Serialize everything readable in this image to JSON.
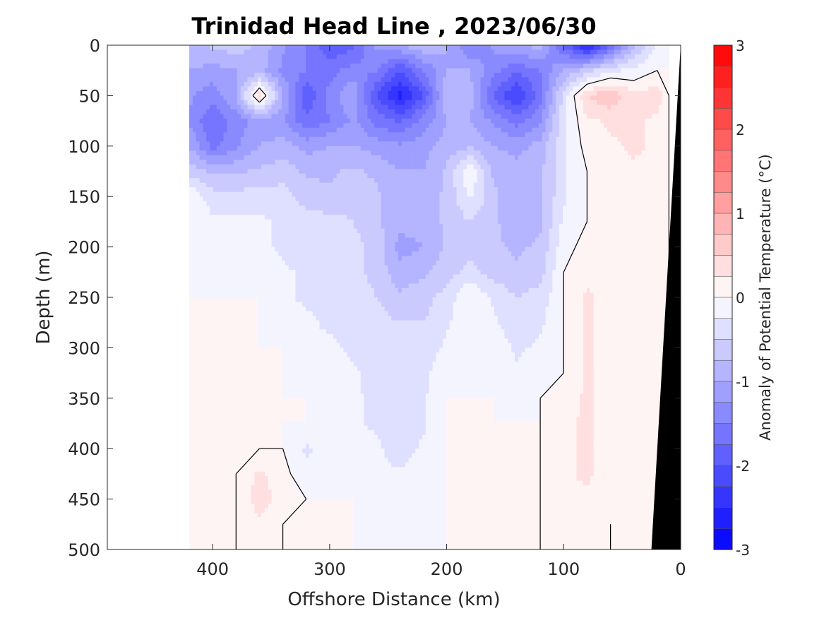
{
  "chart_data": {
    "type": "heatmap",
    "title": "Trinidad Head Line , 2023/06/30",
    "xlabel": "Offshore Distance (km)",
    "ylabel": "Depth (m)",
    "xlim": [
      490,
      0
    ],
    "ylim": [
      500,
      0
    ],
    "x_ticks": [
      400,
      300,
      200,
      100,
      0
    ],
    "y_ticks": [
      0,
      50,
      100,
      150,
      200,
      250,
      300,
      350,
      400,
      450,
      500
    ],
    "colorbar": {
      "label": "Anomaly of Potential Temperature (°C)",
      "range": [
        -3,
        3
      ],
      "step": 0.25,
      "ticks": [
        3,
        2,
        1,
        0,
        -1,
        -2,
        -3
      ],
      "low_color": "#0000ff",
      "mid_color": "#ffffff",
      "high_color": "#ff0000"
    },
    "x_km": [
      420,
      400,
      380,
      360,
      340,
      320,
      300,
      280,
      260,
      240,
      220,
      200,
      180,
      160,
      140,
      120,
      100,
      80,
      60,
      40,
      20,
      10
    ],
    "depth_m": [
      0,
      25,
      50,
      75,
      100,
      125,
      150,
      175,
      200,
      225,
      250,
      275,
      300,
      325,
      350,
      375,
      400,
      425,
      450,
      475,
      500
    ],
    "anomaly_c": [
      [
        -0.8,
        -0.7,
        -0.6,
        -0.8,
        -1.2,
        -1.5,
        -2.0,
        -1.8,
        -1.2,
        -1.0,
        -0.8,
        -1.0,
        -1.5,
        -1.2,
        -1.0,
        -0.9,
        -1.8,
        -2.6,
        -1.8,
        -0.8,
        -0.2,
        0.0
      ],
      [
        -1.0,
        -1.1,
        -1.0,
        -0.9,
        -1.3,
        -1.5,
        -1.6,
        -1.4,
        -1.5,
        -2.0,
        -1.5,
        -1.0,
        -1.0,
        -1.4,
        -1.7,
        -1.5,
        -1.0,
        -0.6,
        -0.3,
        -0.2,
        0.0,
        0.0
      ],
      [
        -1.2,
        -1.4,
        -1.0,
        0.4,
        -1.0,
        -2.0,
        -1.4,
        -1.0,
        -2.0,
        -2.6,
        -2.0,
        -0.8,
        -0.9,
        -1.8,
        -2.3,
        -1.6,
        -0.4,
        0.5,
        0.7,
        0.3,
        0.4,
        0.0
      ],
      [
        -1.3,
        -1.7,
        -1.4,
        -1.1,
        -1.2,
        -1.7,
        -1.5,
        -1.2,
        -1.6,
        -1.8,
        -1.4,
        -1.0,
        -1.0,
        -1.3,
        -1.6,
        -1.3,
        -0.3,
        0.2,
        0.3,
        0.3,
        0.2,
        0.0
      ],
      [
        -1.0,
        -1.6,
        -1.3,
        -1.0,
        -0.9,
        -1.1,
        -1.0,
        -1.0,
        -1.1,
        -1.2,
        -1.1,
        -0.9,
        -0.8,
        -1.0,
        -1.1,
        -0.9,
        -0.3,
        0.1,
        0.2,
        0.3,
        0.2,
        0.0
      ],
      [
        -0.6,
        -0.8,
        -0.8,
        -0.7,
        -0.6,
        -0.8,
        -0.8,
        -0.7,
        -0.8,
        -1.0,
        -1.0,
        -0.7,
        0.0,
        -0.8,
        -0.9,
        -0.8,
        -0.3,
        0.0,
        0.1,
        0.2,
        0.2,
        0.0
      ],
      [
        0.0,
        -0.4,
        -0.4,
        -0.4,
        -0.4,
        -0.6,
        -0.7,
        -0.6,
        -0.7,
        -0.9,
        -0.9,
        -0.7,
        -0.2,
        -0.7,
        -0.9,
        -0.8,
        -0.3,
        0.0,
        0.1,
        0.2,
        0.2,
        0.0
      ],
      [
        0.0,
        -0.2,
        -0.2,
        -0.2,
        -0.3,
        -0.4,
        -0.4,
        -0.5,
        -0.7,
        -0.9,
        -0.9,
        -0.7,
        -0.5,
        -0.7,
        -0.9,
        -0.8,
        -0.2,
        0.0,
        0.1,
        0.2,
        0.2,
        0.0
      ],
      [
        0.0,
        -0.1,
        -0.1,
        -0.2,
        -0.3,
        -0.4,
        -0.4,
        -0.4,
        -0.6,
        -1.1,
        -1.0,
        -0.7,
        -0.6,
        -0.7,
        -0.8,
        -0.7,
        -0.1,
        0.1,
        0.1,
        0.2,
        0.2,
        0.0
      ],
      [
        0.0,
        -0.1,
        0.0,
        -0.1,
        -0.2,
        -0.3,
        -0.3,
        -0.4,
        -0.6,
        -0.9,
        -0.8,
        -0.6,
        -0.4,
        -0.6,
        -0.7,
        -0.6,
        0.0,
        0.2,
        0.1,
        0.2,
        0.2,
        0.0
      ],
      [
        0.0,
        0.0,
        0.0,
        0.0,
        -0.2,
        -0.3,
        -0.3,
        -0.3,
        -0.5,
        -0.7,
        -0.6,
        -0.4,
        0.0,
        -0.3,
        -0.5,
        -0.4,
        0.0,
        0.3,
        0.1,
        0.2,
        0.2,
        0.0
      ],
      [
        0.0,
        0.0,
        0.0,
        0.0,
        -0.1,
        -0.2,
        -0.3,
        -0.3,
        -0.4,
        -0.5,
        -0.5,
        -0.3,
        0.0,
        -0.2,
        -0.4,
        -0.3,
        0.0,
        0.3,
        0.1,
        0.1,
        0.2,
        0.0
      ],
      [
        0.0,
        0.0,
        0.0,
        0.0,
        0.0,
        -0.2,
        -0.2,
        -0.3,
        -0.4,
        -0.5,
        -0.4,
        -0.2,
        0.0,
        -0.1,
        -0.3,
        -0.2,
        0.0,
        0.3,
        0.1,
        0.1,
        0.2,
        0.0
      ],
      [
        0.0,
        0.0,
        0.0,
        0.0,
        0.0,
        -0.1,
        -0.2,
        -0.2,
        -0.4,
        -0.4,
        -0.3,
        -0.1,
        0.0,
        -0.1,
        -0.2,
        -0.1,
        0.0,
        0.3,
        0.1,
        0.1,
        0.2,
        0.0
      ],
      [
        0.0,
        0.0,
        0.0,
        0.0,
        0.0,
        0.0,
        -0.1,
        -0.2,
        -0.3,
        -0.4,
        -0.3,
        0.0,
        0.0,
        0.0,
        -0.1,
        0.0,
        0.1,
        0.3,
        0.1,
        0.1,
        0.2,
        0.0
      ],
      [
        0.0,
        0.0,
        0.0,
        0.0,
        0.0,
        0.0,
        -0.1,
        -0.2,
        -0.3,
        -0.4,
        -0.3,
        0.0,
        0.0,
        0.0,
        0.0,
        0.0,
        0.2,
        0.3,
        0.1,
        0.1,
        0.2,
        0.0
      ],
      [
        0.0,
        0.0,
        0.0,
        0.0,
        0.0,
        -0.3,
        -0.1,
        -0.1,
        -0.2,
        -0.4,
        -0.2,
        0.0,
        0.0,
        0.0,
        0.0,
        0.0,
        0.2,
        0.3,
        0.1,
        0.1,
        0.2,
        0.0
      ],
      [
        0.0,
        0.0,
        0.0,
        0.3,
        0.1,
        -0.2,
        0.0,
        -0.1,
        -0.2,
        -0.2,
        -0.1,
        0.0,
        0.0,
        0.0,
        0.0,
        0.0,
        0.2,
        0.3,
        0.1,
        0.1,
        0.2,
        0.0
      ],
      [
        0.0,
        0.0,
        0.0,
        0.4,
        0.1,
        0.0,
        0.0,
        0.0,
        -0.1,
        -0.2,
        -0.1,
        0.0,
        0.0,
        0.0,
        0.0,
        0.0,
        0.2,
        0.2,
        0.1,
        0.1,
        0.2,
        0.0
      ],
      [
        0.0,
        0.0,
        0.0,
        0.2,
        0.0,
        0.0,
        0.0,
        0.0,
        -0.1,
        -0.2,
        -0.1,
        0.0,
        0.0,
        0.0,
        0.0,
        0.0,
        0.2,
        0.2,
        0.0,
        0.1,
        0.2,
        0.0
      ],
      [
        0.0,
        0.0,
        0.0,
        0.1,
        0.0,
        0.0,
        0.0,
        0.0,
        0.0,
        -0.1,
        0.0,
        0.0,
        0.0,
        0.0,
        0.0,
        0.0,
        0.2,
        0.2,
        0.0,
        0.1,
        0.2,
        0.0
      ]
    ],
    "zero_contour": true,
    "bathymetry_fill": "#000000",
    "bottom_profile_km": [
      [
        0,
        0
      ],
      [
        25,
        500
      ]
    ],
    "data_extent_km": 420,
    "grid": false
  }
}
